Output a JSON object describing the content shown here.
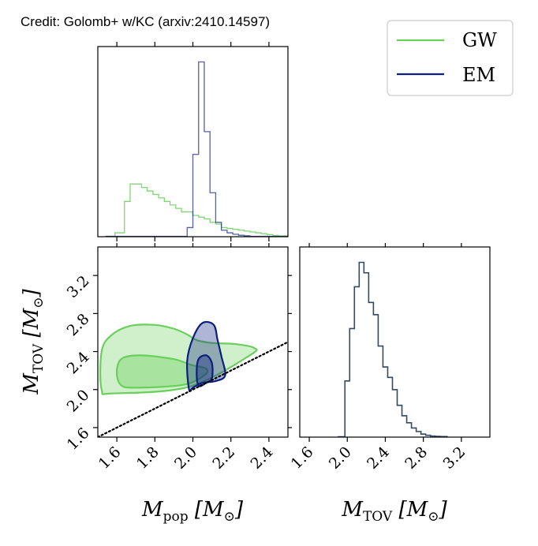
{
  "credit": "Credit: Golomb+ w/KC (arxiv:2410.14597)",
  "colors": {
    "GW": "#6acf5b",
    "EM": "#0c1e80",
    "marginal_tov": "#2f4b66"
  },
  "chart_data": {
    "type": "corner",
    "legend": {
      "placement": "top-right",
      "entries": [
        {
          "label": "GW",
          "color": "#6acf5b"
        },
        {
          "label": "EM",
          "color": "#0c1e80"
        }
      ]
    },
    "axes": {
      "x_label": "M_pop [M_⊙]",
      "y_label": "M_TOV [M_⊙]",
      "x_label_tov": "M_TOV [M_⊙]",
      "x_ticks": [
        "1.6",
        "1.8",
        "2.0",
        "2.2",
        "2.4"
      ],
      "y_ticks": [
        "1.6",
        "2.0",
        "2.4",
        "2.8",
        "3.2"
      ],
      "x_ticks_tov": [
        "1.6",
        "2.0",
        "2.4",
        "2.8",
        "3.2"
      ],
      "x_range": [
        1.5,
        2.5
      ],
      "y_range": [
        1.5,
        3.5
      ],
      "tov_range": [
        1.5,
        3.5
      ]
    },
    "hist_mpop": {
      "edges": [
        1.54,
        1.59,
        1.64,
        1.67,
        1.7,
        1.73,
        1.76,
        1.79,
        1.82,
        1.85,
        1.88,
        1.91,
        1.94,
        1.97,
        2.0,
        2.03,
        2.06,
        2.09,
        2.12,
        2.15,
        2.18,
        2.21,
        2.24,
        2.27,
        2.3,
        2.33,
        2.36,
        2.39,
        2.42,
        2.45,
        2.5
      ],
      "GW": [
        0,
        0.02,
        0.2,
        0.3,
        0.3,
        0.28,
        0.26,
        0.24,
        0.22,
        0.2,
        0.18,
        0.16,
        0.14,
        0.14,
        0.12,
        0.11,
        0.1,
        0.08,
        0.07,
        0.05,
        0.045,
        0.04,
        0.035,
        0.03,
        0.025,
        0.02,
        0.015,
        0.01,
        0.005,
        0.002
      ],
      "EM": [
        0,
        0,
        0,
        0,
        0,
        0,
        0,
        0,
        0,
        0,
        0,
        0,
        0,
        0.05,
        0.47,
        1.0,
        0.6,
        0.25,
        0.08,
        0.035,
        0.02,
        0.012,
        0.006,
        0.003,
        0,
        0,
        0,
        0,
        0,
        0
      ]
    },
    "hist_mtov": {
      "edges": [
        1.9,
        1.975,
        2.025,
        2.075,
        2.125,
        2.175,
        2.225,
        2.275,
        2.325,
        2.375,
        2.425,
        2.475,
        2.525,
        2.575,
        2.625,
        2.675,
        2.725,
        2.775,
        2.825,
        2.875,
        2.925,
        2.975,
        3.05
      ],
      "values": [
        0.0,
        0.32,
        0.62,
        0.86,
        1.0,
        0.94,
        0.77,
        0.7,
        0.52,
        0.4,
        0.34,
        0.27,
        0.18,
        0.12,
        0.08,
        0.05,
        0.03,
        0.015,
        0.008,
        0.004,
        0.002,
        0.001
      ]
    },
    "contours": {
      "GW_outer": [
        [
          1.52,
          2.0
        ],
        [
          1.52,
          2.4
        ],
        [
          1.57,
          2.57
        ],
        [
          1.67,
          2.67
        ],
        [
          1.8,
          2.68
        ],
        [
          1.9,
          2.64
        ],
        [
          1.97,
          2.58
        ],
        [
          2.02,
          2.52
        ],
        [
          2.1,
          2.49
        ],
        [
          2.22,
          2.48
        ],
        [
          2.32,
          2.44
        ],
        [
          2.3,
          2.36
        ],
        [
          1.98,
          2.03
        ],
        [
          1.58,
          1.96
        ]
      ],
      "GW_inner": [
        [
          1.62,
          2.05
        ],
        [
          1.6,
          2.2
        ],
        [
          1.63,
          2.33
        ],
        [
          1.73,
          2.36
        ],
        [
          1.9,
          2.32
        ],
        [
          1.99,
          2.26
        ],
        [
          2.07,
          2.22
        ],
        [
          2.06,
          2.15
        ],
        [
          1.95,
          2.05
        ],
        [
          1.7,
          2.02
        ]
      ],
      "EM_outer": [
        [
          1.98,
          2.0
        ],
        [
          1.97,
          2.3
        ],
        [
          2.0,
          2.54
        ],
        [
          2.05,
          2.7
        ],
        [
          2.11,
          2.68
        ],
        [
          2.13,
          2.52
        ],
        [
          2.15,
          2.35
        ],
        [
          2.17,
          2.15
        ],
        [
          2.12,
          2.09
        ],
        [
          2.05,
          2.07
        ],
        [
          2.0,
          2.02
        ]
      ],
      "EM_inner": [
        [
          2.03,
          2.04
        ],
        [
          2.02,
          2.18
        ],
        [
          2.03,
          2.32
        ],
        [
          2.07,
          2.36
        ],
        [
          2.1,
          2.28
        ],
        [
          2.1,
          2.12
        ],
        [
          2.07,
          2.07
        ]
      ]
    },
    "diagonal_line": {
      "style": "dotted",
      "points": [
        [
          1.5,
          1.5
        ],
        [
          2.5,
          2.5
        ]
      ]
    }
  }
}
